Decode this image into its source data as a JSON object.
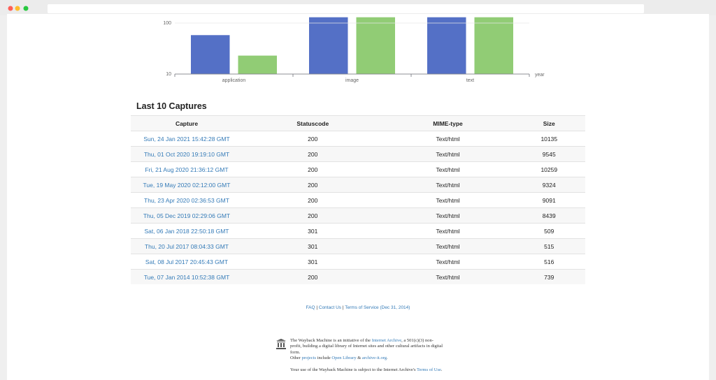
{
  "chart_data": {
    "type": "bar",
    "log_scale": true,
    "grid": true,
    "categories": [
      "application",
      "image",
      "text"
    ],
    "x_label": "year",
    "series": [
      {
        "color": "#5470c6",
        "values": [
          58,
          130,
          130
        ]
      },
      {
        "color": "#91cc75",
        "values": [
          23,
          130,
          130
        ]
      }
    ],
    "ylim": [
      10,
      130
    ],
    "yticks": [
      10,
      100
    ]
  },
  "table": {
    "title": "Last 10 Captures",
    "header": [
      "Capture",
      "Statuscode",
      "MIME-type",
      "Size"
    ],
    "rows": [
      [
        "Sun, 24 Jan 2021 15:42:28 GMT",
        "200",
        "Text/html",
        "10135"
      ],
      [
        "Thu, 01 Oct 2020 19:19:10 GMT",
        "200",
        "Text/html",
        "9545"
      ],
      [
        "Fri, 21 Aug 2020 21:36:12 GMT",
        "200",
        "Text/html",
        "10259"
      ],
      [
        "Tue, 19 May 2020 02:12:00 GMT",
        "200",
        "Text/html",
        "9324"
      ],
      [
        "Thu, 23 Apr 2020 02:36:53 GMT",
        "200",
        "Text/html",
        "9091"
      ],
      [
        "Thu, 05 Dec 2019 02:29:06 GMT",
        "200",
        "Text/html",
        "8439"
      ],
      [
        "Sat, 06 Jan 2018 22:50:18 GMT",
        "301",
        "Text/html",
        "509"
      ],
      [
        "Thu, 20 Jul 2017 08:04:33 GMT",
        "301",
        "Text/html",
        "515"
      ],
      [
        "Sat, 08 Jul 2017 20:45:43 GMT",
        "301",
        "Text/html",
        "516"
      ],
      [
        "Tue, 07 Jan 2014 10:52:38 GMT",
        "200",
        "Text/html",
        "739"
      ]
    ]
  },
  "footer": {
    "links": [
      "FAQ",
      "Contact Us",
      "Terms of Service (Dec 31, 2014)"
    ],
    "separator": "|",
    "about": [
      [
        {
          "text": "The Wayback Machine is an initiative of the "
        },
        {
          "text": "Internet Archive",
          "link": true
        },
        {
          "text": ", a 501(c)(3) non-profit, building a digital library of Internet sites and other cultural artifacts in digital form."
        }
      ],
      [
        {
          "text": "Other "
        },
        {
          "text": "projects",
          "link": true
        },
        {
          "text": " include "
        },
        {
          "text": "Open Library",
          "link": true
        },
        {
          "text": " & "
        },
        {
          "text": "archive-it.org",
          "link": true
        },
        {
          "text": "."
        }
      ],
      [
        {
          "text": "Your use of the Wayback Machine is subject to the Internet Archive's "
        },
        {
          "text": "Terms of Use",
          "link": true
        },
        {
          "text": "."
        }
      ]
    ]
  }
}
